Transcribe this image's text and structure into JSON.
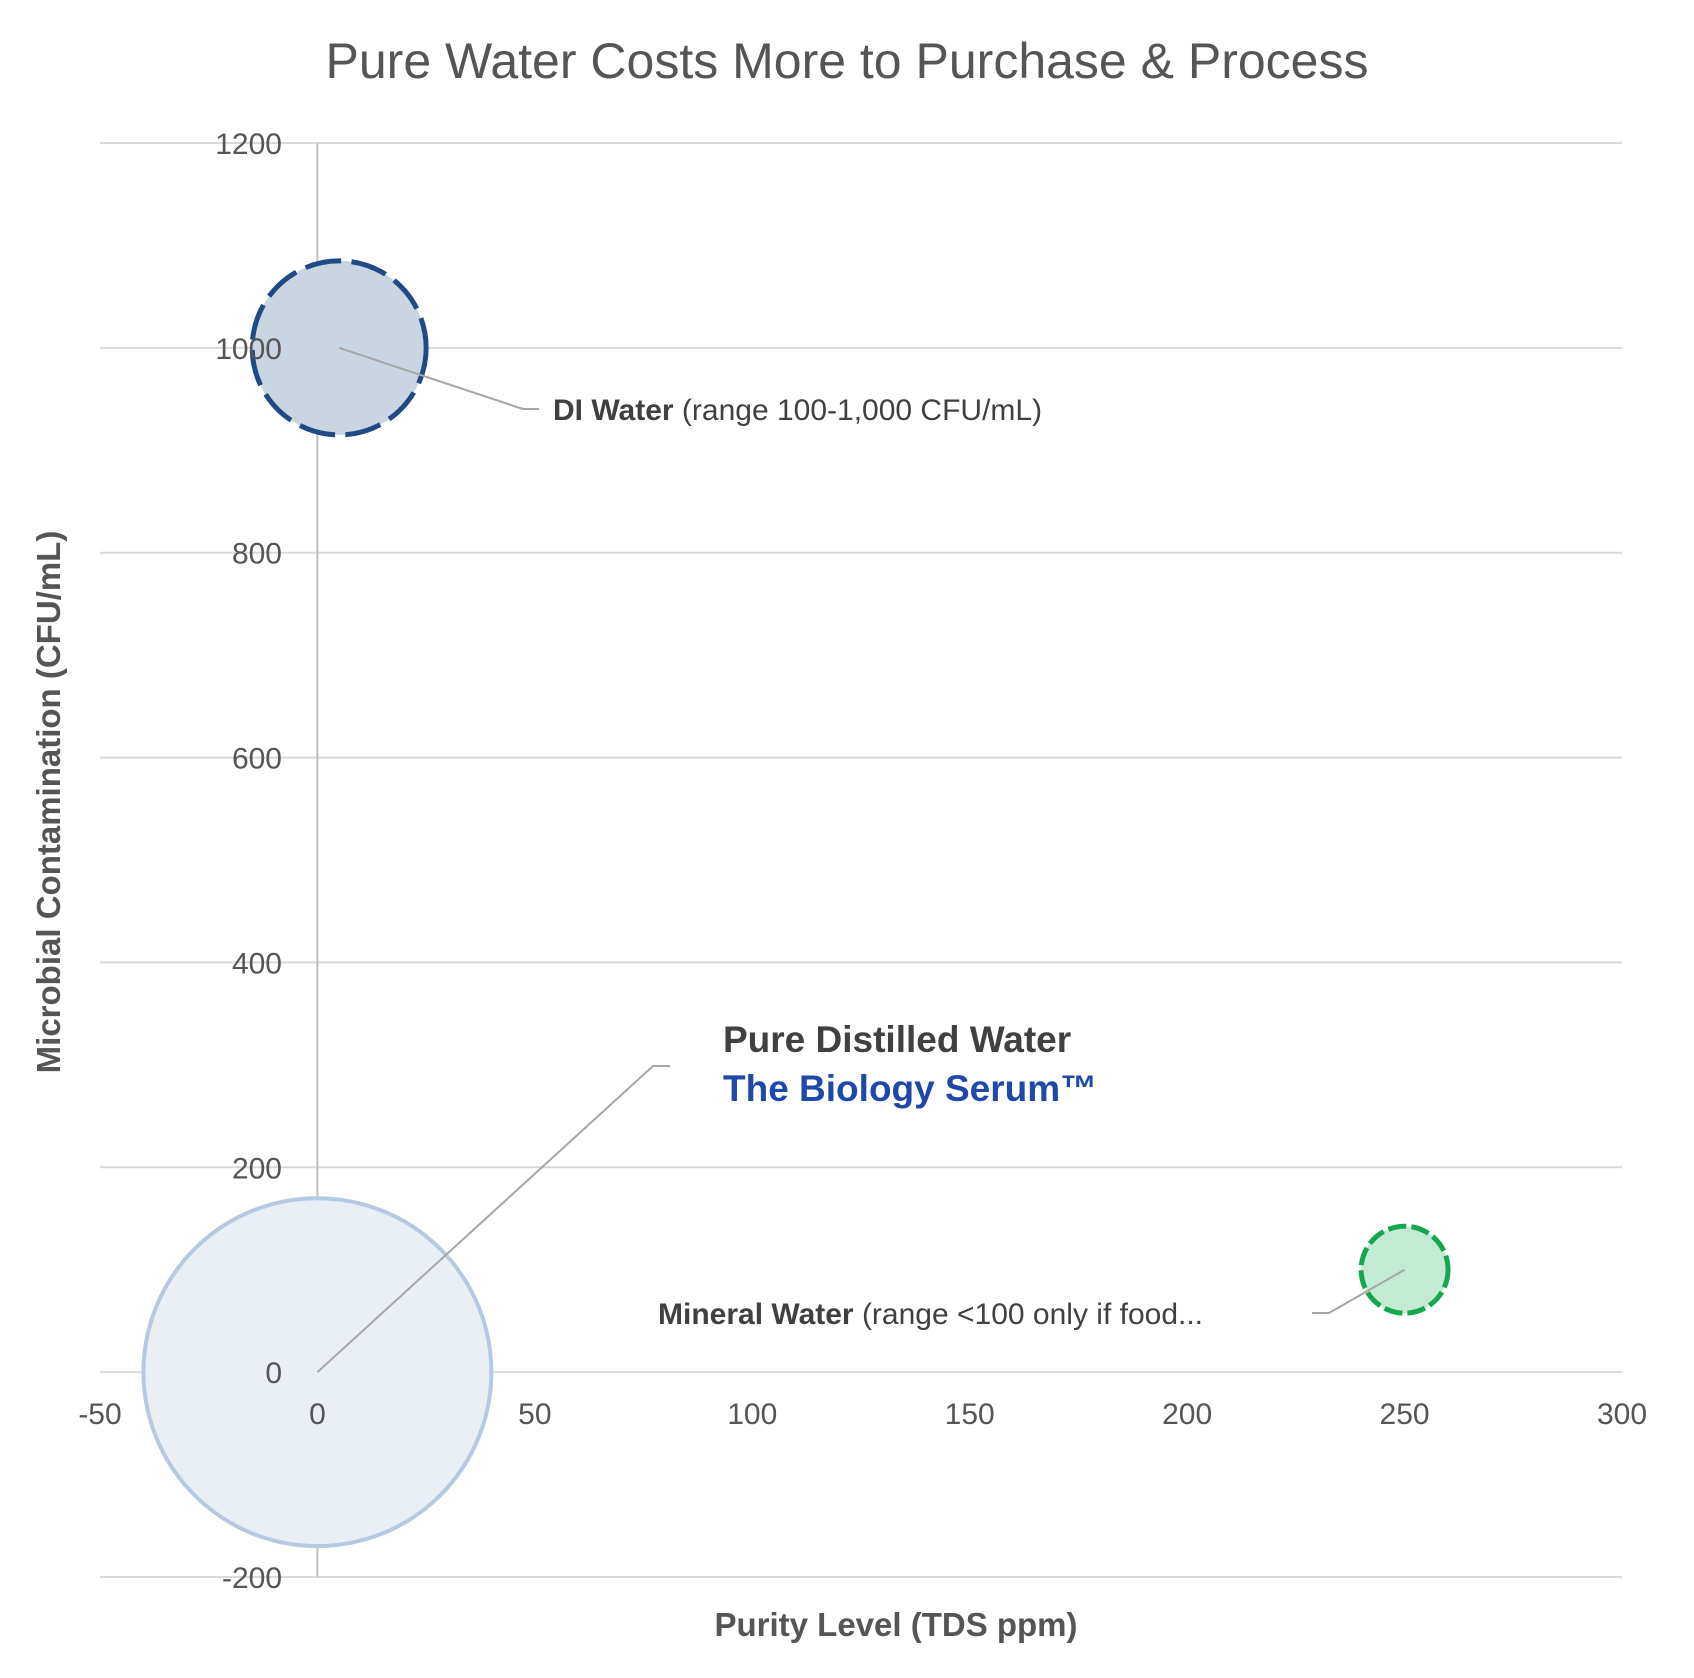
{
  "chart_data": {
    "type": "bubble",
    "title": "Pure Water Costs More to Purchase & Process",
    "xlabel": "Purity Level (TDS ppm)",
    "ylabel": "Microbial Contamination (CFU/mL)",
    "xlim": [
      -50,
      300
    ],
    "ylim": [
      -200,
      1200
    ],
    "x_ticks": [
      "-50",
      "0",
      "50",
      "100",
      "150",
      "200",
      "250",
      "300"
    ],
    "y_ticks": [
      "-200",
      "0",
      "200",
      "400",
      "600",
      "800",
      "1000",
      "1200"
    ],
    "grid": "horizontal",
    "legend": "none",
    "points": [
      {
        "x": 0,
        "y": 0,
        "size": 40,
        "fill": "#eaeff6",
        "stroke": "#b6c9e2",
        "dashed": false,
        "label_lines": [
          {
            "bold": "Pure Distilled Water",
            "color": "#404040"
          },
          {
            "bold": "The Biology Serum™",
            "color": "#1f49a8"
          }
        ]
      },
      {
        "x": 5,
        "y": 1000,
        "size": 20,
        "fill": "#c9d5e1",
        "stroke": "#1f4a86",
        "dashed": true,
        "label_lines": [
          {
            "bold": "DI Water",
            "rest": " (range 100-1,000 CFU/mL)"
          }
        ]
      },
      {
        "x": 250,
        "y": 100,
        "size": 10,
        "fill": "#c3ead2",
        "stroke": "#14a84e",
        "dashed": true,
        "label_lines": [
          {
            "bold": "Mineral Water",
            "rest": " (range <100 only if food..."
          }
        ]
      }
    ]
  }
}
